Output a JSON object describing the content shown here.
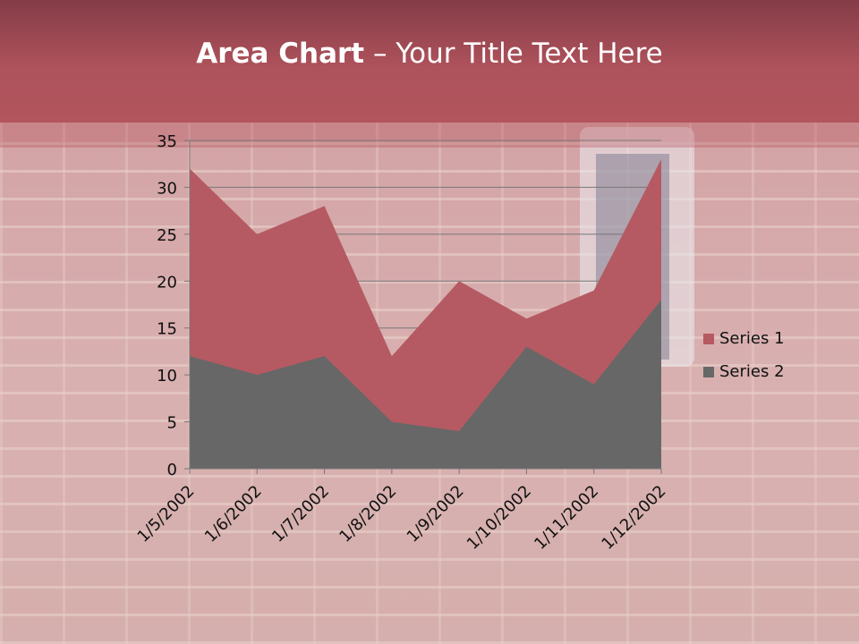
{
  "title": {
    "bold": "Area Chart",
    "rest": " – Your Title Text Here"
  },
  "colors": {
    "header": "#ae525b",
    "series1": "#b55a62",
    "series2": "#676767"
  },
  "chart_data": {
    "type": "area",
    "categories": [
      "1/5/2002",
      "1/6/2002",
      "1/7/2002",
      "1/8/2002",
      "1/9/2002",
      "1/10/2002",
      "1/11/2002",
      "1/12/2002"
    ],
    "series": [
      {
        "name": "Series 1",
        "values": [
          32,
          25,
          28,
          12,
          20,
          16,
          19,
          33
        ]
      },
      {
        "name": "Series 2",
        "values": [
          12,
          10,
          12,
          5,
          4,
          13,
          9,
          18
        ]
      }
    ],
    "ylim": [
      0,
      35
    ],
    "yticks": [
      0,
      5,
      10,
      15,
      20,
      25,
      30,
      35
    ],
    "grid": true,
    "legend": "right"
  }
}
